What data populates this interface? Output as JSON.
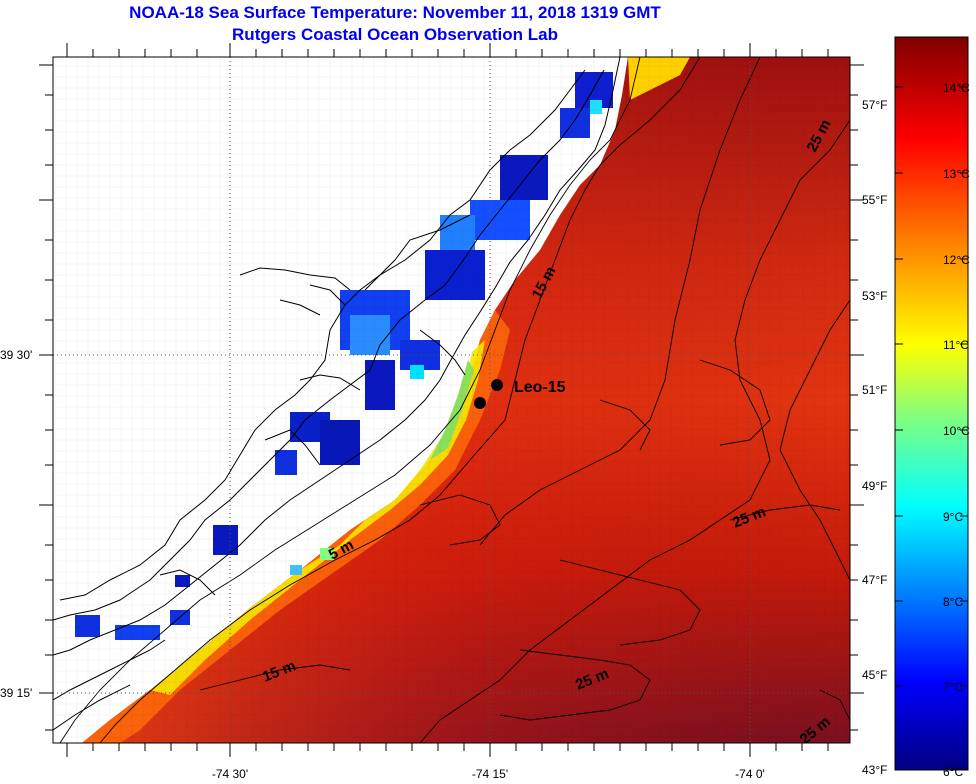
{
  "header": {
    "title": "NOAA-18 Sea Surface Temperature:  November 11, 2018 1319 GMT",
    "subtitle": "Rutgers Coastal Ocean Observation Lab"
  },
  "map": {
    "lat_labels": [
      "39 30'",
      "39 15'"
    ],
    "lon_labels": [
      "-74 30'",
      "-74 15'",
      "-74 0'"
    ],
    "station_label": "Leo-15",
    "contour_labels": [
      "15 m",
      "5 m",
      "15 m",
      "25 m",
      "25 m",
      "25 m",
      "25 m"
    ]
  },
  "colorbar": {
    "celsius_labels": [
      "14°C",
      "13°C",
      "12°C",
      "11°C",
      "10°C",
      "9°C",
      "8°C",
      "7°C",
      "6°C"
    ],
    "fahrenheit_labels": [
      "57°F",
      "55°F",
      "53°F",
      "51°F",
      "49°F",
      "47°F",
      "45°F",
      "43°F"
    ],
    "min_c": 6,
    "max_c": 14.7,
    "colors": [
      "#000080",
      "#0000ff",
      "#0080ff",
      "#00ffff",
      "#80ff80",
      "#ffff00",
      "#ff8000",
      "#ff0000",
      "#800000"
    ]
  }
}
